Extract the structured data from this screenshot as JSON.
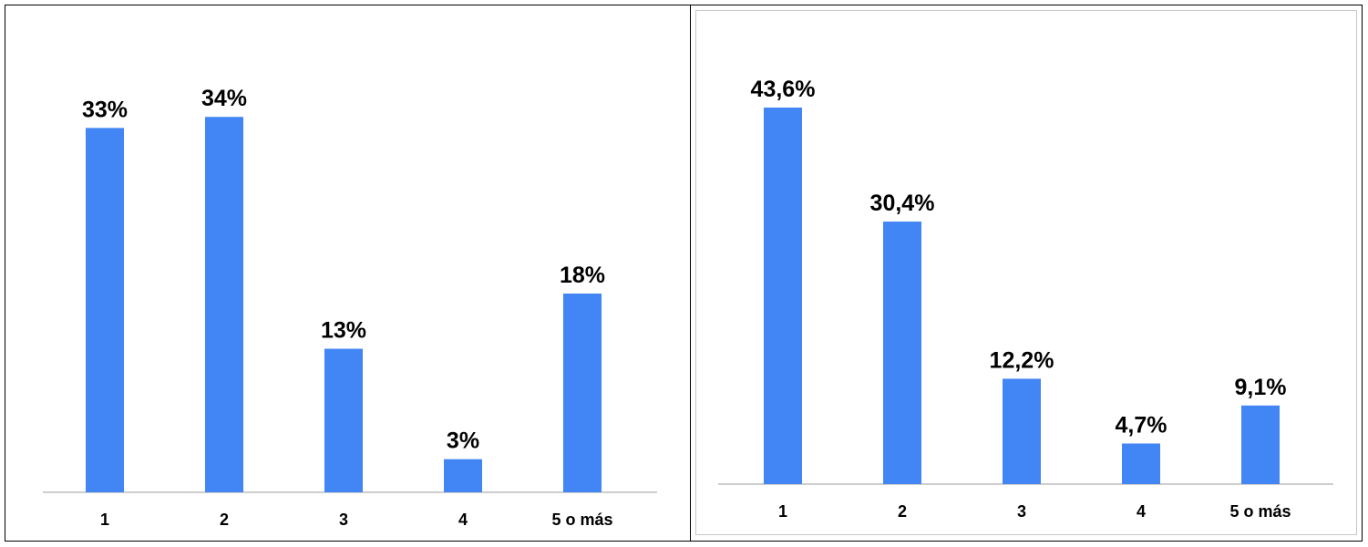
{
  "chart_data": [
    {
      "type": "bar",
      "categories": [
        "1",
        "2",
        "3",
        "4",
        "5 o más"
      ],
      "values": [
        33,
        34,
        13,
        3,
        18
      ],
      "data_labels": [
        "33%",
        "34%",
        "13%",
        "3%",
        "18%"
      ],
      "title": "",
      "xlabel": "",
      "ylabel": "",
      "ylim": [
        0,
        36
      ],
      "bar_color": "#4285f4",
      "grid": false,
      "legend": "none"
    },
    {
      "type": "bar",
      "categories": [
        "1",
        "2",
        "3",
        "4",
        "5 o más"
      ],
      "values": [
        43.6,
        30.4,
        12.2,
        4.7,
        9.1
      ],
      "data_labels": [
        "43,6%",
        "30,4%",
        "12,2%",
        "4,7%",
        "9,1%"
      ],
      "title": "",
      "xlabel": "",
      "ylabel": "",
      "ylim": [
        0,
        45.5
      ],
      "bar_color": "#4285f4",
      "grid": false,
      "legend": "none"
    }
  ]
}
